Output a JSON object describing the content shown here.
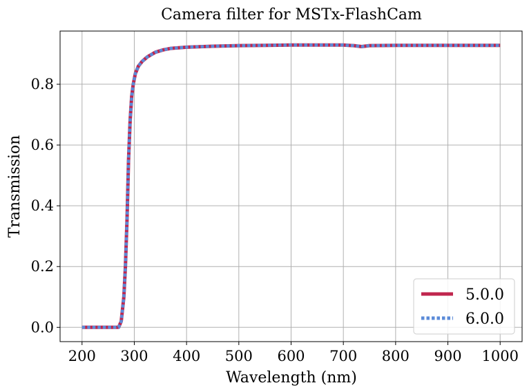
{
  "chart_data": {
    "type": "line",
    "title": "Camera filter for MSTx-FlashCam",
    "xlabel": "Wavelength (nm)",
    "ylabel": "Transmission",
    "xlim": [
      158,
      1042
    ],
    "ylim": [
      -0.047,
      0.975
    ],
    "xticks": [
      200,
      300,
      400,
      500,
      600,
      700,
      800,
      900,
      1000
    ],
    "yticks": [
      0.0,
      0.2,
      0.4,
      0.6,
      0.8
    ],
    "ytick_labels": [
      "0.0",
      "0.2",
      "0.4",
      "0.6",
      "0.8"
    ],
    "grid": true,
    "legend_position": "bottom-right",
    "x": [
      200,
      220,
      240,
      260,
      270,
      275,
      280,
      283,
      286,
      289,
      292,
      295,
      298,
      302,
      308,
      315,
      325,
      340,
      355,
      370,
      385,
      400,
      450,
      500,
      550,
      600,
      650,
      700,
      720,
      735,
      750,
      800,
      850,
      900,
      950,
      1000
    ],
    "series": [
      {
        "name": "5.0.0",
        "color": "#c0264e",
        "style": "solid",
        "values": [
          0.0,
          0.0,
          0.0,
          0.0,
          0.0,
          0.02,
          0.1,
          0.2,
          0.35,
          0.55,
          0.68,
          0.76,
          0.8,
          0.835,
          0.86,
          0.875,
          0.89,
          0.905,
          0.913,
          0.918,
          0.92,
          0.922,
          0.925,
          0.927,
          0.928,
          0.929,
          0.929,
          0.929,
          0.927,
          0.924,
          0.927,
          0.928,
          0.928,
          0.928,
          0.928,
          0.928
        ]
      },
      {
        "name": "6.0.0",
        "color": "#5b8bd8",
        "style": "dotted",
        "values": [
          0.0,
          0.0,
          0.0,
          0.0,
          0.0,
          0.02,
          0.1,
          0.2,
          0.35,
          0.55,
          0.68,
          0.76,
          0.8,
          0.835,
          0.86,
          0.875,
          0.89,
          0.905,
          0.913,
          0.918,
          0.92,
          0.922,
          0.925,
          0.927,
          0.928,
          0.929,
          0.929,
          0.929,
          0.927,
          0.924,
          0.927,
          0.928,
          0.928,
          0.928,
          0.928,
          0.928
        ]
      }
    ]
  },
  "colors": {
    "grid": "#b0b0b0",
    "axes": "#000000",
    "legend_border": "#cccccc"
  }
}
